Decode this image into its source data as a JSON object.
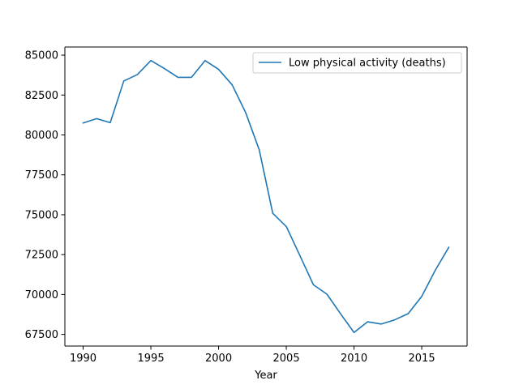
{
  "chart_data": {
    "type": "line",
    "title": "",
    "xlabel": "Year",
    "ylabel": "",
    "x": [
      1990,
      1991,
      1992,
      1993,
      1994,
      1995,
      1996,
      1997,
      1998,
      1999,
      2000,
      2001,
      2002,
      2003,
      2004,
      2005,
      2006,
      2007,
      2008,
      2009,
      2010,
      2011,
      2012,
      2013,
      2014,
      2015,
      2016,
      2017
    ],
    "series": [
      {
        "name": "Low physical activity (deaths)",
        "color": "#1f77b4",
        "values": [
          80750,
          81020,
          80770,
          83380,
          83780,
          84660,
          84160,
          83610,
          83610,
          84660,
          84110,
          83140,
          81400,
          79070,
          75090,
          74260,
          72450,
          70610,
          70020,
          68800,
          67620,
          68290,
          68150,
          68410,
          68800,
          69880,
          71520,
          72960
        ]
      }
    ],
    "xticks": [
      1990,
      1995,
      2000,
      2005,
      2010,
      2015
    ],
    "yticks": [
      67500,
      70000,
      72500,
      75000,
      77500,
      80000,
      82500,
      85000
    ],
    "xlim": [
      1988.65,
      2018.35
    ],
    "ylim": [
      66770,
      85510
    ],
    "grid": false,
    "legend_position": "upper right"
  }
}
